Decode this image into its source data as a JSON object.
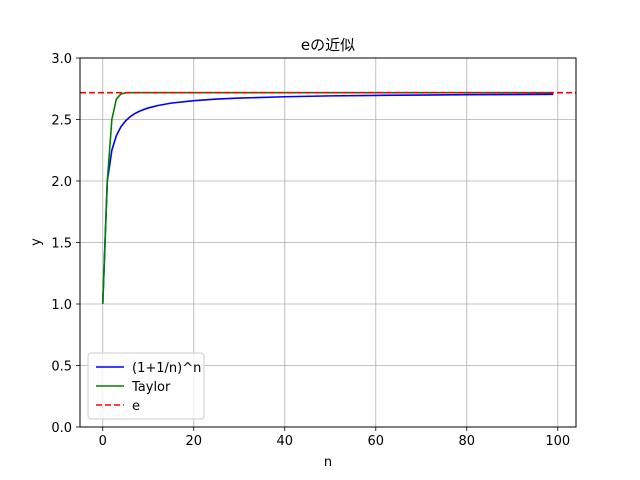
{
  "chart_data": {
    "type": "line",
    "title": "eの近似",
    "xlabel": "n",
    "ylabel": "y",
    "xlim": [
      -5,
      104
    ],
    "ylim": [
      0.0,
      3.0
    ],
    "xticks": [
      0,
      20,
      40,
      60,
      80,
      100
    ],
    "yticks": [
      0.0,
      0.5,
      1.0,
      1.5,
      2.0,
      2.5,
      3.0
    ],
    "xtick_labels": [
      "0",
      "20",
      "40",
      "60",
      "80",
      "100"
    ],
    "ytick_labels": [
      "0.0",
      "0.5",
      "1.0",
      "1.5",
      "2.0",
      "2.5",
      "3.0"
    ],
    "grid": true,
    "legend_position": "lower-left",
    "series": [
      {
        "name": "(1+1/n)^n",
        "color": "#0000ff",
        "style": "solid",
        "x": [
          0,
          1,
          2,
          3,
          4,
          5,
          6,
          7,
          8,
          9,
          10,
          12,
          15,
          20,
          25,
          30,
          40,
          50,
          60,
          70,
          80,
          90,
          99
        ],
        "y": [
          1.0,
          2.0,
          2.25,
          2.37,
          2.441,
          2.488,
          2.522,
          2.547,
          2.566,
          2.581,
          2.594,
          2.613,
          2.633,
          2.653,
          2.666,
          2.674,
          2.685,
          2.692,
          2.696,
          2.699,
          2.702,
          2.703,
          2.705
        ]
      },
      {
        "name": "Taylor",
        "color": "#008000",
        "style": "solid",
        "x": [
          0,
          1,
          2,
          3,
          4,
          5,
          6,
          7,
          8,
          10,
          20,
          40,
          60,
          80,
          99
        ],
        "y": [
          1.0,
          2.0,
          2.5,
          2.667,
          2.708,
          2.717,
          2.718,
          2.718,
          2.718,
          2.718,
          2.718,
          2.718,
          2.718,
          2.718,
          2.718
        ]
      },
      {
        "name": "e",
        "color": "#ff0000",
        "style": "dashed",
        "x": [
          -5,
          104
        ],
        "y": [
          2.718,
          2.718
        ]
      }
    ]
  }
}
